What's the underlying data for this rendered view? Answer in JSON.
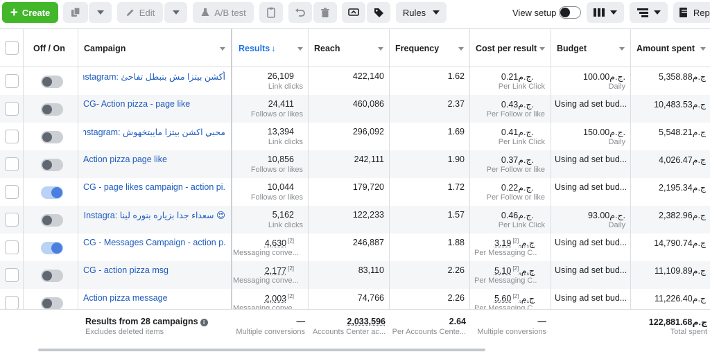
{
  "toolbar": {
    "create_label": "Create",
    "edit_label": "Edit",
    "ab_test_label": "A/B test",
    "rules_label": "Rules",
    "view_setup_label": "View setup",
    "reports_label": "Repo"
  },
  "columns": {
    "off_on": "Off / On",
    "campaign": "Campaign",
    "results": "Results",
    "reach": "Reach",
    "frequency": "Frequency",
    "cost_per_result": "Cost per result",
    "budget": "Budget",
    "amount_spent": "Amount spent"
  },
  "rows": [
    {
      "name": "أكشن بيتزا مش بتبطل تفاحئ :Instagram ...ور",
      "rtl": true,
      "on": false,
      "results": "26,109",
      "results_sub": "Link clicks",
      "reach": "422,140",
      "frequency": "1.62",
      "cost": "0.21ج.م.",
      "cost_sub": "Per Link Click",
      "budget": "100.00ج.م.",
      "budget_sub": "Daily",
      "spent": "5,358.88ج.م",
      "dotted": false
    },
    {
      "name": "CG- Action pizza - page like",
      "rtl": false,
      "on": false,
      "results": "24,411",
      "results_sub": "Follows or likes",
      "reach": "460,086",
      "frequency": "2.37",
      "cost": "0.43ج.م.",
      "cost_sub": "Per Follow or like",
      "budget": "Using ad set bud...",
      "budget_sub": "",
      "spent": "10,483.53ج.م",
      "dotted": false
    },
    {
      "name": "محبي اكشن بيتزا مايبتخهوش :Instagram ...ر....",
      "rtl": true,
      "on": false,
      "results": "13,394",
      "results_sub": "Link clicks",
      "reach": "296,092",
      "frequency": "1.69",
      "cost": "0.41ج.م.",
      "cost_sub": "Per Link Click",
      "budget": "150.00ج.م.",
      "budget_sub": "Daily",
      "spent": "5,548.21ج.م",
      "dotted": false
    },
    {
      "name": "Action pizza page like",
      "rtl": false,
      "on": false,
      "results": "10,856",
      "results_sub": "Follows or likes",
      "reach": "242,111",
      "frequency": "1.90",
      "cost": "0.37ج.م.",
      "cost_sub": "Per Follow or like",
      "budget": "Using ad set bud...",
      "budget_sub": "",
      "spent": "4,026.47ج.م",
      "dotted": false
    },
    {
      "name": "CG - page likes campaign - action pi...",
      "rtl": false,
      "on": true,
      "results": "10,044",
      "results_sub": "Follows or likes",
      "reach": "179,720",
      "frequency": "1.72",
      "cost": "0.22ج.م.",
      "cost_sub": "Per Follow or like",
      "budget": "Using ad set bud...",
      "budget_sub": "",
      "spent": "2,195.34ج.م",
      "dotted": false
    },
    {
      "name": "😍 سعداء جدا بزياره بنوره لينا :Instagra... و",
      "rtl": true,
      "on": false,
      "results": "5,162",
      "results_sub": "Link clicks",
      "reach": "122,233",
      "frequency": "1.57",
      "cost": "0.46ج.م.",
      "cost_sub": "Per Link Click",
      "budget": "93.00ج.م.",
      "budget_sub": "Daily",
      "spent": "2,382.96ج.م",
      "dotted": false
    },
    {
      "name": "CG - Messages Campaign - action p...",
      "rtl": false,
      "on": true,
      "results": "4,630",
      "results_sub": "Messaging conve...",
      "reach": "246,887",
      "frequency": "1.88",
      "cost": "3.19ج.م.",
      "cost_sub": "Per Messaging C...",
      "budget": "Using ad set bud...",
      "budget_sub": "",
      "spent": "14,790.74ج.م",
      "dotted": true
    },
    {
      "name": "CG - action pizza msg",
      "rtl": false,
      "on": false,
      "results": "2,177",
      "results_sub": "Messaging conve...",
      "reach": "83,110",
      "frequency": "2.26",
      "cost": "5.10ج.م.",
      "cost_sub": "Per Messaging C...",
      "budget": "Using ad set bud...",
      "budget_sub": "",
      "spent": "11,109.89ج.م",
      "dotted": true
    },
    {
      "name": "Action pizza message",
      "rtl": false,
      "on": false,
      "results": "2,003",
      "results_sub": "Messaging conve...",
      "reach": "74,766",
      "frequency": "2.26",
      "cost": "5.60ج.م.",
      "cost_sub": "Per Messaging C...",
      "budget": "Using ad set bud...",
      "budget_sub": "",
      "spent": "11,226.40ج.م",
      "dotted": true
    }
  ],
  "footnote_marker": "[2]",
  "summary": {
    "title": "Results from 28 campaigns",
    "subtitle": "Excludes deleted items",
    "results": "—",
    "results_sub": "Multiple conversions",
    "reach": "2,033,596",
    "reach_sub": "Accounts Center ac...",
    "frequency": "2.64",
    "frequency_sub": "Per Accounts Cente...",
    "cost": "—",
    "cost_sub": "Multiple conversions",
    "spent": "122,881.68ج.م",
    "spent_sub": "Total spent"
  },
  "colors": {
    "accent": "#1a73e8",
    "create": "#42b72a",
    "link": "#1d5bbf"
  }
}
